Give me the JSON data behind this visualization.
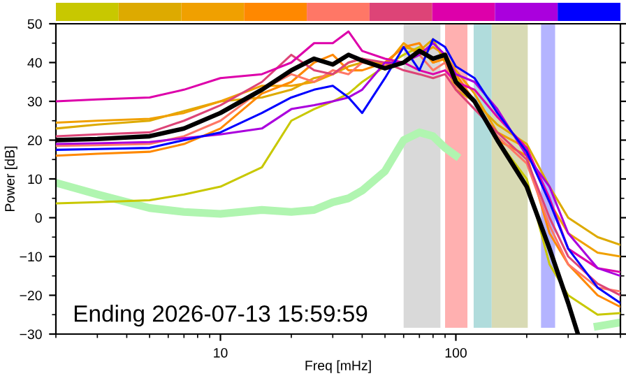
{
  "chart_data": {
    "type": "line",
    "xlabel": "Freq [mHz]",
    "ylabel": "Power [dB]",
    "log": "x",
    "xlim": [
      2,
      500
    ],
    "xticks": [
      10,
      100
    ],
    "ylim": [
      -30,
      50
    ],
    "yticks": [
      {
        "value": -30,
        "label": "−30"
      },
      {
        "value": -20,
        "label": "−20"
      },
      {
        "value": -10,
        "label": "−10"
      },
      0,
      10,
      20,
      30,
      40,
      50
    ],
    "x": [
      2,
      3,
      5,
      7,
      10,
      15,
      20,
      25,
      30,
      35,
      40,
      50,
      60,
      70,
      80,
      90,
      100,
      120,
      150,
      200,
      250,
      300,
      400,
      500
    ],
    "series": [
      {
        "color": "#c8c800",
        "values": [
          3.7,
          4,
          4.5,
          6,
          8,
          13,
          25,
          28,
          30,
          32,
          35,
          39,
          42,
          44,
          40,
          41,
          36,
          30,
          20,
          10,
          -12,
          -20,
          -25,
          -24.6
        ]
      },
      {
        "color": "#ddaa00",
        "values": [
          23,
          24,
          25,
          27.5,
          30,
          31,
          33,
          36,
          37,
          39,
          40,
          40,
          44,
          43,
          46,
          40,
          33,
          30,
          24,
          19,
          8,
          0,
          -5,
          -7
        ]
      },
      {
        "color": "#f0a000",
        "values": [
          24.5,
          25,
          25.5,
          27,
          30,
          34,
          34,
          35,
          37,
          40,
          41,
          39,
          45,
          42,
          44,
          42,
          38,
          32,
          22,
          18,
          4,
          -4,
          -9,
          -10
        ]
      },
      {
        "color": "#ff8800",
        "values": [
          16,
          16.5,
          17,
          19,
          23,
          32,
          35,
          40,
          42,
          38,
          38,
          40,
          44,
          45,
          40,
          41,
          37,
          30,
          20,
          16,
          -4,
          -12,
          -20,
          -23
        ]
      },
      {
        "color": "#ff7766",
        "values": [
          18.5,
          18.7,
          19,
          21,
          25,
          33,
          37,
          35,
          38,
          37,
          40,
          39,
          40,
          42,
          38,
          40,
          34,
          30,
          21,
          14,
          -2,
          -12,
          -18,
          -19
        ]
      },
      {
        "color": "#dd4477",
        "values": [
          21,
          21.5,
          22,
          25,
          29,
          35,
          42,
          38,
          37,
          40,
          41,
          40,
          38,
          37,
          36,
          37,
          33,
          28,
          22,
          15,
          0,
          -10,
          -17,
          -20
        ]
      },
      {
        "color": "#dd00aa",
        "values": [
          30,
          30.5,
          31,
          33,
          36,
          37,
          40,
          45,
          45,
          48,
          43,
          41,
          40,
          38,
          37,
          38,
          35,
          33,
          26,
          18,
          5,
          -8,
          -13,
          -14
        ]
      },
      {
        "color": "#aa00dd",
        "values": [
          19,
          19.2,
          19.5,
          20.5,
          21.5,
          23,
          28,
          29,
          30,
          31,
          33,
          40,
          40,
          42,
          45,
          42,
          37,
          35,
          28,
          16,
          8,
          -4,
          -13,
          -15
        ]
      },
      {
        "color": "#0000ff",
        "values": [
          17.5,
          17.7,
          18,
          20,
          22,
          27,
          31,
          33,
          34,
          31,
          27,
          36,
          44,
          38,
          46,
          44,
          39,
          36,
          27,
          17,
          4,
          -8,
          -18,
          -22
        ]
      },
      {
        "color": "#000000",
        "x": [
          2,
          3,
          5,
          7,
          10,
          15,
          20,
          25,
          30,
          35,
          40,
          50,
          60,
          70,
          80,
          90,
          100,
          120,
          150,
          200,
          250,
          300,
          330
        ],
        "values": [
          20,
          20.3,
          21,
          23,
          27,
          33,
          38,
          41,
          39.5,
          42,
          40.5,
          38.5,
          40,
          43,
          41,
          42,
          35,
          30,
          20,
          8,
          -8,
          -22,
          -30
        ]
      },
      {
        "color": "#b0f5b0",
        "values": [
          9,
          6,
          2.5,
          1.5,
          1,
          2,
          1.5,
          2,
          4,
          5,
          7,
          12,
          20,
          22,
          21,
          18,
          16,
          null,
          null,
          null,
          null,
          null,
          -28,
          -27
        ]
      }
    ],
    "bands": [
      {
        "axis": "x",
        "from": 60,
        "to": 86,
        "color": "#d9d9d9"
      },
      {
        "axis": "x",
        "from": 90,
        "to": 112,
        "color": "#ffb0b0"
      },
      {
        "axis": "x",
        "from": 119,
        "to": 142,
        "color": "#b0dcdc"
      },
      {
        "axis": "x",
        "from": 142,
        "to": 202,
        "color": "#d8dab4"
      },
      {
        "axis": "x",
        "from": 230,
        "to": 264,
        "color": "#b4b4ff"
      }
    ],
    "annotations": [
      "Ending 2026-07-13 15:59:59"
    ],
    "grid": false,
    "legend": false,
    "marker": "none",
    "line_style": "solid"
  }
}
